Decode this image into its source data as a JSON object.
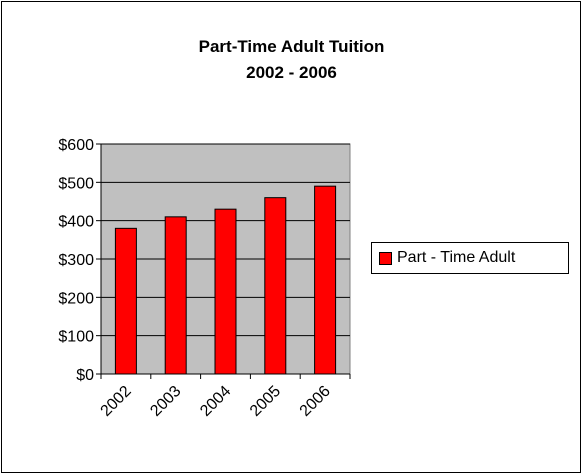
{
  "chart_data": {
    "type": "bar",
    "title": "Part-Time Adult Tuition",
    "subtitle": "2002 - 2006",
    "categories": [
      "2002",
      "2003",
      "2004",
      "2005",
      "2006"
    ],
    "series": [
      {
        "name": "Part - Time Adult",
        "values": [
          380,
          410,
          430,
          460,
          490
        ]
      }
    ],
    "ylim": [
      0,
      600
    ],
    "yticks": [
      0,
      100,
      200,
      300,
      400,
      500,
      600
    ],
    "ytick_labels": [
      "$0",
      "$100",
      "$200",
      "$300",
      "$400",
      "$500",
      "$600"
    ],
    "grid": true,
    "legend_position": "right",
    "colors": {
      "bar": "#ff0000",
      "plot_background": "#c0c0c0",
      "gridline": "#000000",
      "axis": "#000000"
    }
  }
}
